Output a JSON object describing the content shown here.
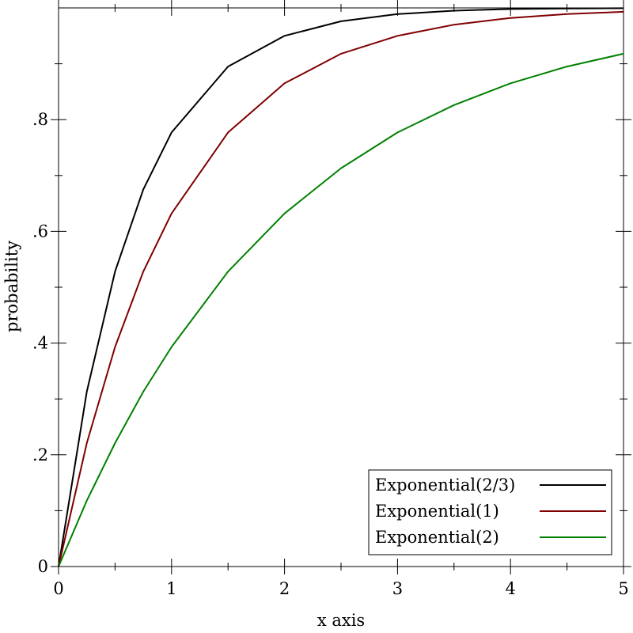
{
  "chart_data": {
    "type": "line",
    "title": "",
    "xlabel": "x axis",
    "ylabel": "probability",
    "xlim": [
      0,
      5
    ],
    "ylim": [
      0,
      1
    ],
    "grid": false,
    "legend_position": "bottom-right",
    "x_ticks": [
      {
        "value": 0,
        "label": "0"
      },
      {
        "value": 1,
        "label": "1"
      },
      {
        "value": 2,
        "label": "2"
      },
      {
        "value": 3,
        "label": "3"
      },
      {
        "value": 4,
        "label": "4"
      },
      {
        "value": 5,
        "label": "5"
      }
    ],
    "y_ticks": [
      {
        "value": 0,
        "label": "0"
      },
      {
        "value": 0.2,
        "label": ".2"
      },
      {
        "value": 0.4,
        "label": ".4"
      },
      {
        "value": 0.6,
        "label": ".6"
      },
      {
        "value": 0.8,
        "label": ".8"
      }
    ],
    "x": [
      0,
      0.25,
      0.5,
      0.75,
      1,
      1.5,
      2,
      2.5,
      3,
      3.5,
      4,
      4.5,
      5
    ],
    "series": [
      {
        "name": "Exponential(2/3)",
        "color": "#000000",
        "values": [
          0,
          0.313,
          0.528,
          0.675,
          0.777,
          0.895,
          0.95,
          0.976,
          0.989,
          0.995,
          0.998,
          0.999,
          0.9994
        ]
      },
      {
        "name": "Exponential(1)",
        "color": "#800000",
        "values": [
          0,
          0.221,
          0.393,
          0.528,
          0.632,
          0.777,
          0.865,
          0.918,
          0.95,
          0.97,
          0.982,
          0.989,
          0.993
        ]
      },
      {
        "name": "Exponential(2)",
        "color": "#008000",
        "values": [
          0,
          0.118,
          0.221,
          0.313,
          0.393,
          0.528,
          0.632,
          0.713,
          0.777,
          0.826,
          0.865,
          0.895,
          0.918
        ]
      }
    ]
  }
}
